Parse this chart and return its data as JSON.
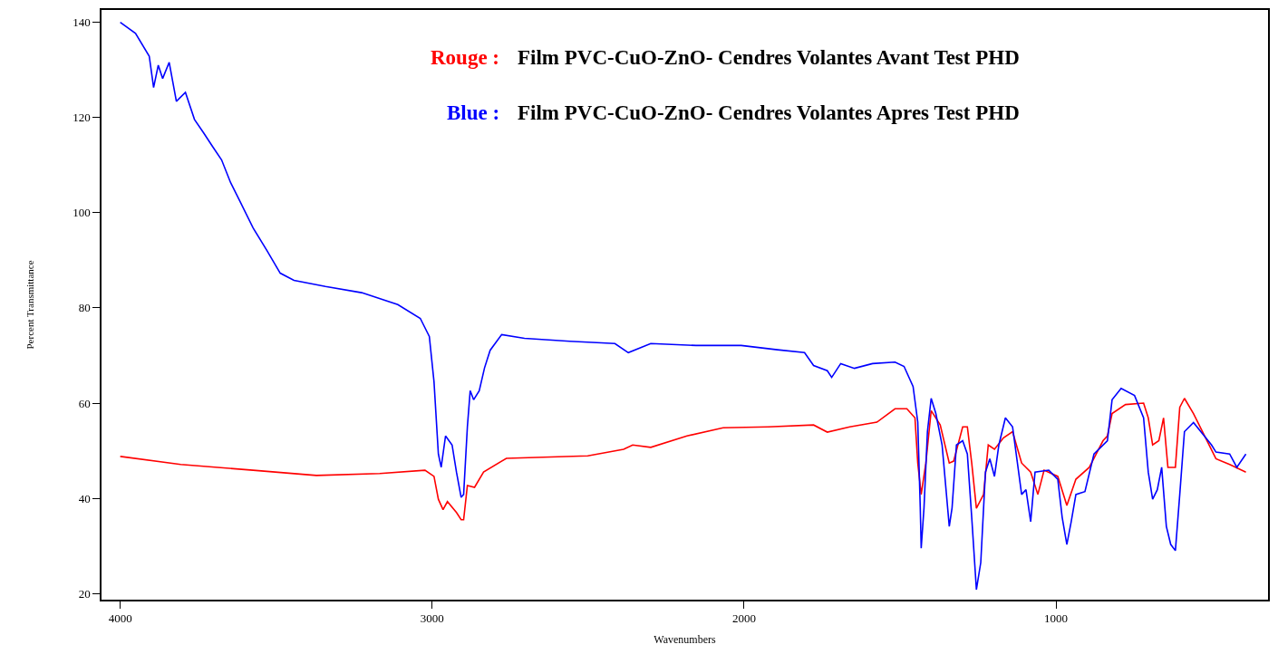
{
  "chart_data": {
    "type": "line",
    "xlabel": "Wavenumbers",
    "ylabel": "Percent Transmittance",
    "xlim": [
      4060,
      320
    ],
    "xticks": [
      4000,
      3000,
      2000,
      1000
    ],
    "ylim": [
      18.7,
      142.6
    ],
    "yticks": [
      20,
      40,
      60,
      80,
      100,
      120,
      140
    ],
    "marker": "none",
    "line_style": "solid",
    "annotations": [
      "Rouge :",
      "Film PVC-CuO-ZnO- Cendres Volantes Avant Test PHD",
      "Blue :",
      "Film PVC-CuO-ZnO- Cendres Volantes Apres Test PHD"
    ],
    "series": [
      {
        "color": "#ff0000",
        "x": [
          4000,
          3806,
          3574,
          3371,
          3168,
          3023,
          2994,
          2980,
          2965,
          2951,
          2922,
          2907,
          2899,
          2887,
          2864,
          2835,
          2762,
          2501,
          2386,
          2357,
          2299,
          2183,
          2067,
          1922,
          1777,
          1733,
          1661,
          1574,
          1516,
          1478,
          1452,
          1443,
          1432,
          1417,
          1400,
          1371,
          1342,
          1328,
          1299,
          1284,
          1270,
          1255,
          1232,
          1217,
          1197,
          1168,
          1139,
          1110,
          1081,
          1058,
          1038,
          994,
          965,
          936,
          893,
          849,
          835,
          820,
          777,
          719,
          704,
          690,
          670,
          655,
          641,
          617,
          603,
          588,
          559,
          487,
          443,
          391
        ],
        "values": [
          48.8,
          47.1,
          45.9,
          44.8,
          45.2,
          45.9,
          44.6,
          39.8,
          37.6,
          39.3,
          37,
          35.5,
          35.5,
          42.7,
          42.3,
          45.5,
          48.4,
          48.9,
          50.3,
          51.2,
          50.7,
          53.1,
          54.8,
          55,
          55.4,
          53.9,
          55,
          56,
          58.8,
          58.8,
          56.9,
          47.4,
          40.8,
          47.4,
          58.4,
          55.4,
          47.4,
          47.8,
          55,
          55,
          47.4,
          37.9,
          40.8,
          51.2,
          50.3,
          52.7,
          54,
          47.4,
          45.5,
          40.8,
          45.9,
          44.6,
          38.5,
          44,
          46.5,
          52.1,
          53.1,
          57.8,
          59.7,
          60,
          56.9,
          51.2,
          52.1,
          56.9,
          46.5,
          46.5,
          59.1,
          61,
          57.8,
          48.3,
          47.1,
          45.5
        ]
      },
      {
        "color": "#0000ff",
        "x": [
          4000,
          3951,
          3907,
          3893,
          3878,
          3864,
          3843,
          3820,
          3791,
          3762,
          3733,
          3704,
          3675,
          3646,
          3617,
          3574,
          3530,
          3487,
          3443,
          3342,
          3226,
          3110,
          3038,
          3009,
          2994,
          2980,
          2971,
          2957,
          2936,
          2922,
          2907,
          2899,
          2887,
          2878,
          2867,
          2849,
          2832,
          2814,
          2777,
          2704,
          2559,
          2414,
          2371,
          2299,
          2154,
          2009,
          1893,
          1806,
          1777,
          1733,
          1719,
          1690,
          1646,
          1588,
          1516,
          1487,
          1458,
          1443,
          1435,
          1432,
          1423,
          1412,
          1400,
          1385,
          1365,
          1342,
          1333,
          1319,
          1299,
          1284,
          1270,
          1255,
          1241,
          1226,
          1212,
          1197,
          1183,
          1162,
          1139,
          1110,
          1096,
          1081,
          1067,
          1023,
          994,
          980,
          965,
          951,
          936,
          907,
          878,
          835,
          820,
          791,
          748,
          719,
          704,
          690,
          675,
          661,
          646,
          632,
          617,
          603,
          588,
          559,
          501,
          487,
          443,
          420,
          391
        ],
        "values": [
          140,
          137.7,
          132.9,
          126.3,
          131,
          128.2,
          131.6,
          123.4,
          125.3,
          119.6,
          116.8,
          113.9,
          111.1,
          106.3,
          102.5,
          96.8,
          92.1,
          87.3,
          85.8,
          84.5,
          83.2,
          80.7,
          77.8,
          74,
          64.5,
          49.3,
          46.5,
          53.1,
          51.2,
          45.5,
          40.2,
          40.8,
          55,
          62.6,
          60.7,
          62.6,
          67.4,
          71.1,
          74.4,
          73.6,
          73,
          72.5,
          70.6,
          72.5,
          72.1,
          72.1,
          71.2,
          70.6,
          67.9,
          66.8,
          65.4,
          68.3,
          67.3,
          68.3,
          68.6,
          67.7,
          63.5,
          56,
          38,
          29.5,
          38,
          54,
          61,
          57.8,
          51.2,
          34.1,
          38,
          51.2,
          52.1,
          49.3,
          36,
          20.8,
          26.5,
          45.5,
          48.3,
          44.6,
          51.2,
          56.9,
          55,
          40.8,
          41.8,
          35.1,
          45.5,
          45.9,
          44,
          36,
          30.3,
          35.1,
          40.8,
          41.4,
          49.3,
          52.1,
          60.7,
          63.1,
          61.6,
          56.9,
          45.5,
          39.8,
          41.8,
          46.5,
          34.1,
          30.3,
          29,
          40.8,
          54,
          55.9,
          51.2,
          49.7,
          49.3,
          46.5,
          49.3
        ]
      }
    ]
  }
}
